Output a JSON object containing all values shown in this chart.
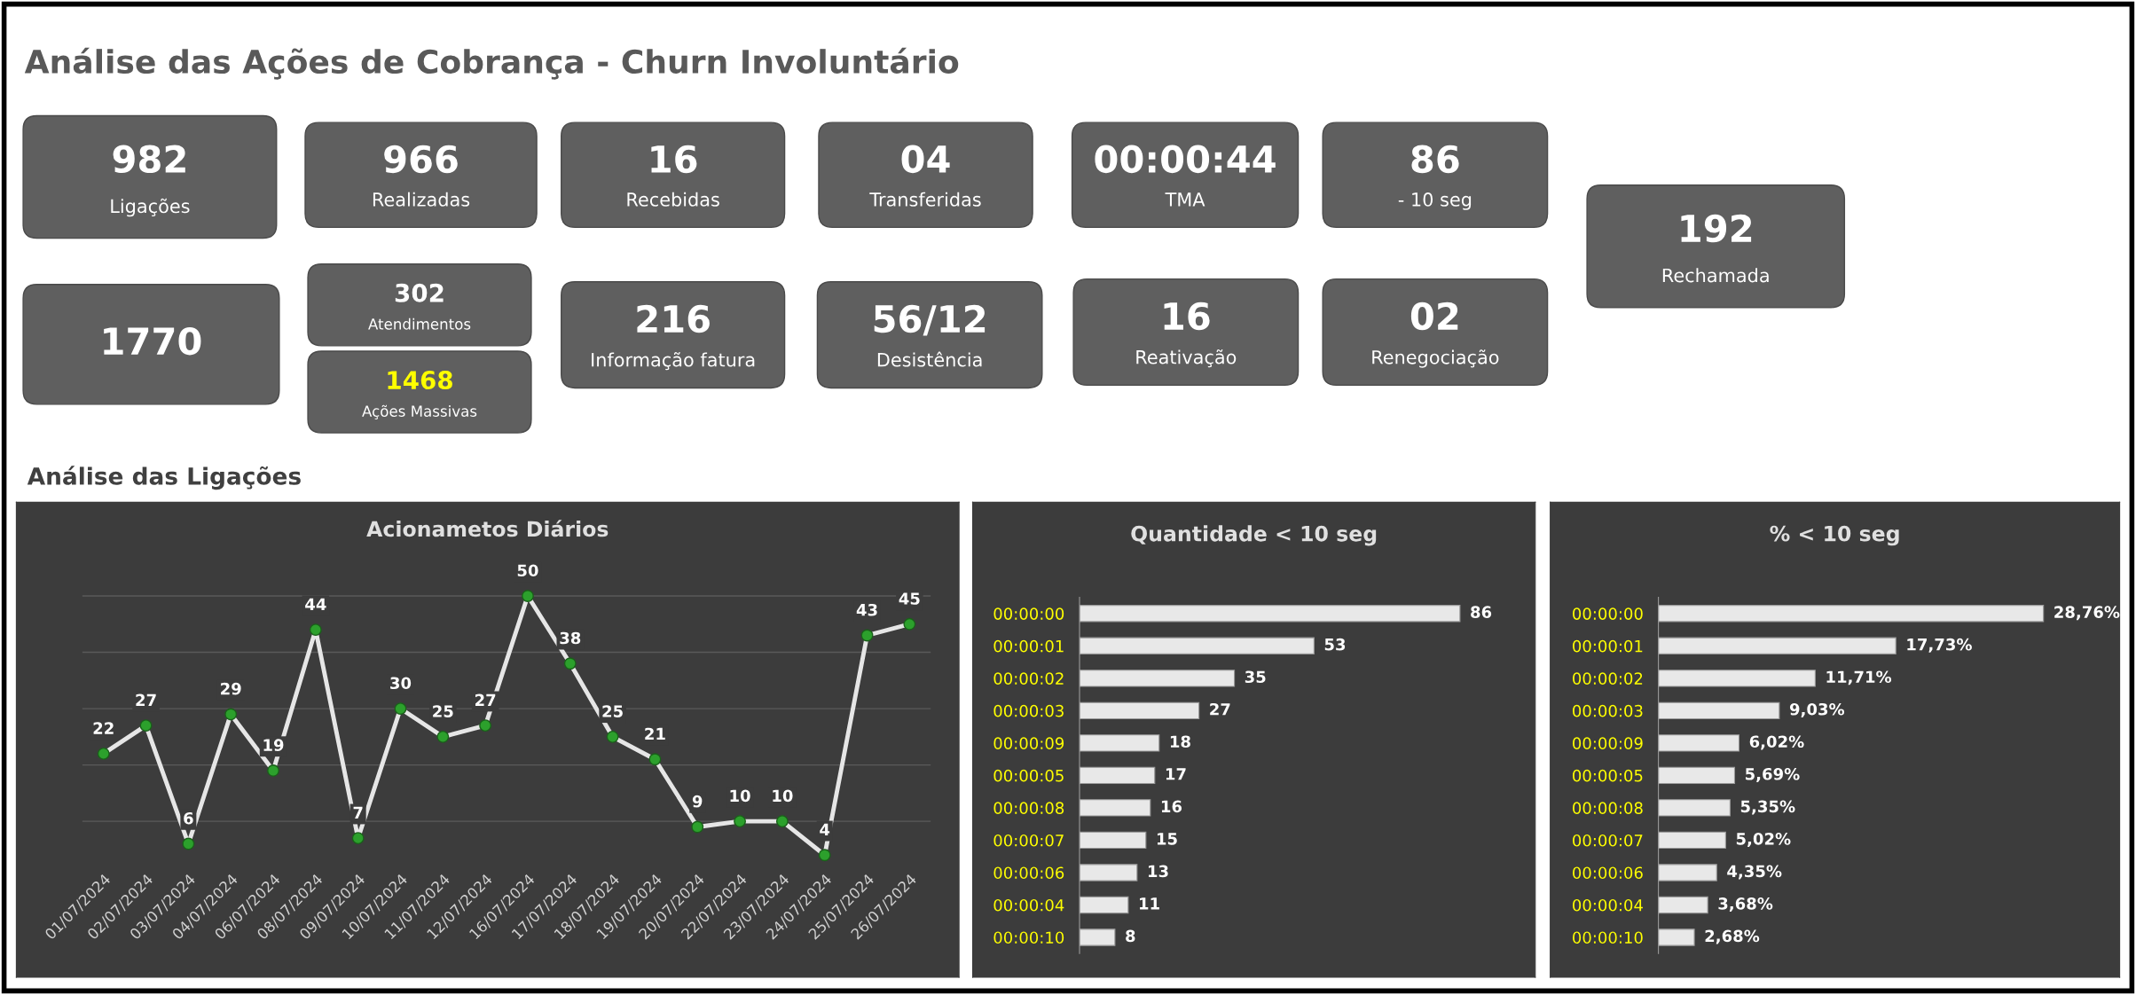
{
  "chart_data": [
    {
      "type": "other",
      "title": "Análise das Ações de Cobrança - Churn Involuntário",
      "subtitle": "Análise das Ligações",
      "categories": [
        "Ligações",
        "Realizadas",
        "Recebidas",
        "Transferidas",
        "TMA",
        "- 10 seg",
        "Rechamada",
        null,
        "Atendimentos",
        "Ações Massivas",
        "Informação fatura",
        "Desistência",
        "Reativação",
        "Renegociação"
      ],
      "value_labels": [
        "982",
        "966",
        "16",
        "04",
        "00:00:44",
        "86",
        "192",
        "1770",
        "302",
        "1468",
        "216",
        "56/12",
        "16",
        "02"
      ],
      "colors": [
        "#5f5f5f",
        "#5f5f5f",
        "#5f5f5f",
        "#5f5f5f",
        "#5f5f5f",
        "#5f5f5f",
        "#5f5f5f",
        "#5f5f5f",
        "#5f5f5f",
        "#5f5f5f",
        "#5f5f5f",
        "#5f5f5f",
        "#5f5f5f",
        "#5f5f5f"
      ]
    },
    {
      "type": "line",
      "title": "Acionametos Diários",
      "categories": [
        "01/07/2024",
        "02/07/2024",
        "03/07/2024",
        "04/07/2024",
        "06/07/2024",
        "08/07/2024",
        "09/07/2024",
        "10/07/2024",
        "11/07/2024",
        "12/07/2024",
        "16/07/2024",
        "17/07/2024",
        "18/07/2024",
        "19/07/2024",
        "20/07/2024",
        "22/07/2024",
        "23/07/2024",
        "24/07/2024",
        "25/07/2024",
        "26/07/2024"
      ],
      "series": [
        {
          "color": "#e6e6e6",
          "values": [
            22,
            27,
            6,
            29,
            19,
            44,
            7,
            30,
            25,
            27,
            50,
            38,
            25,
            21,
            9,
            10,
            10,
            4,
            43,
            45
          ]
        }
      ],
      "marker": "circle",
      "data_labels": true,
      "grid": "y",
      "tick_labels": "x"
    },
    {
      "type": "bar",
      "orientation": "horizontal",
      "title": "Quantidade < 10 seg",
      "categories": [
        "00:00:00",
        "00:00:01",
        "00:00:02",
        "00:00:03",
        "00:00:09",
        "00:00:05",
        "00:00:08",
        "00:00:07",
        "00:00:06",
        "00:00:04",
        "00:00:10"
      ],
      "values": [
        86,
        53,
        35,
        27,
        18,
        17,
        16,
        15,
        13,
        11,
        8
      ],
      "color": "#e8e8e8",
      "data_labels": true,
      "tick_labels": "y"
    },
    {
      "type": "bar",
      "orientation": "horizontal",
      "title": "% < 10 seg",
      "categories": [
        "00:00:00",
        "00:00:01",
        "00:00:02",
        "00:00:03",
        "00:00:09",
        "00:00:05",
        "00:00:08",
        "00:00:07",
        "00:00:06",
        "00:00:04",
        "00:00:10"
      ],
      "values": [
        28.76,
        17.73,
        11.71,
        9.03,
        6.02,
        5.69,
        5.35,
        5.02,
        4.35,
        3.68,
        2.68
      ],
      "value_labels": [
        "28,76%",
        "17,73%",
        "11,71%",
        "9,03%",
        "6,02%",
        "5,69%",
        "5,35%",
        "5,02%",
        "4,35%",
        "3,68%",
        "2,68%"
      ],
      "color": "#e8e8e8",
      "tick_labels": "y"
    }
  ]
}
